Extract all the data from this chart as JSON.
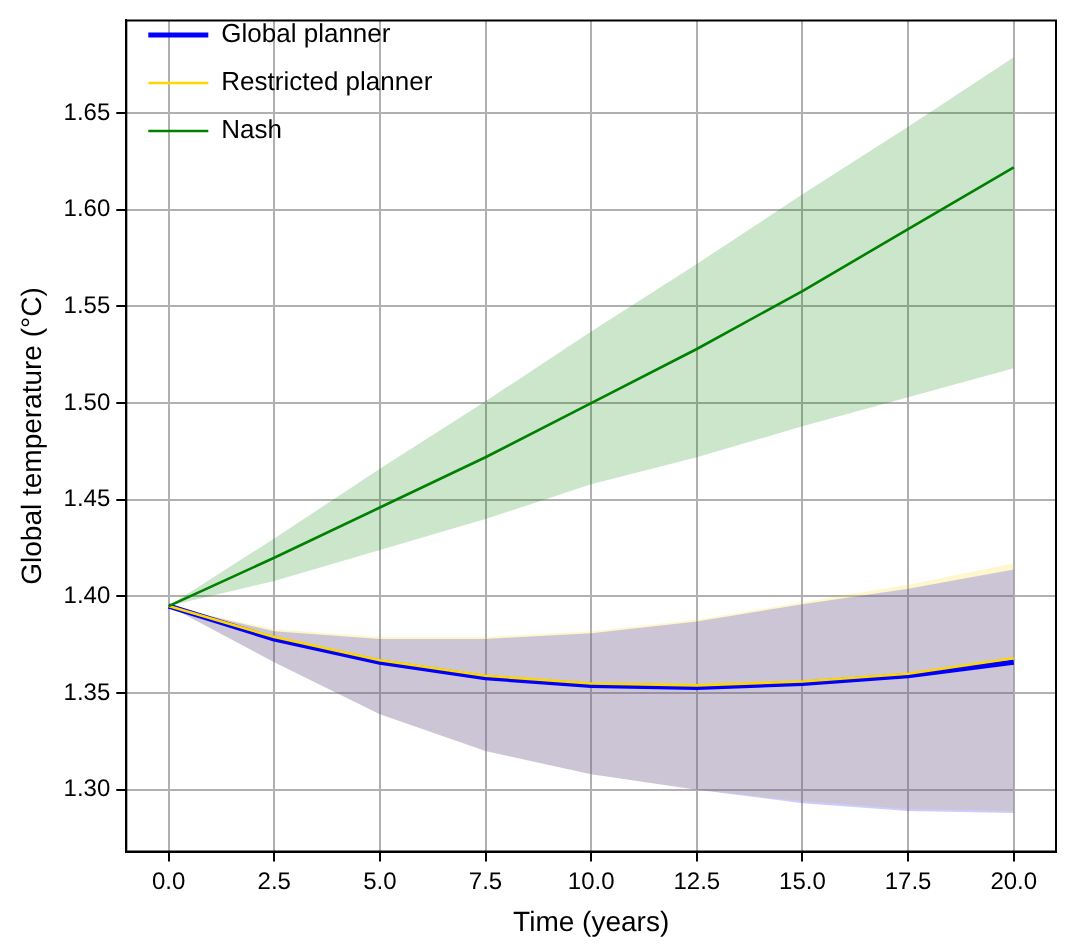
{
  "chart_data": {
    "type": "line",
    "xlabel": "Time (years)",
    "ylabel": "Global temperature (°C)",
    "x": [
      0,
      2.5,
      5,
      7.5,
      10,
      12.5,
      15,
      17.5,
      20
    ],
    "series": [
      {
        "name": "Global planner",
        "color": "#0000ff",
        "values": [
          1.395,
          1.378,
          1.366,
          1.358,
          1.354,
          1.353,
          1.355,
          1.359,
          1.366
        ],
        "lower": [
          1.395,
          1.366,
          1.339,
          1.32,
          1.308,
          1.3,
          1.293,
          1.289,
          1.288
        ],
        "upper": [
          1.395,
          1.382,
          1.378,
          1.378,
          1.381,
          1.387,
          1.396,
          1.404,
          1.414
        ]
      },
      {
        "name": "Restricted planner",
        "color": "#ffd700",
        "values": [
          1.395,
          1.379,
          1.367,
          1.359,
          1.355,
          1.354,
          1.356,
          1.36,
          1.368
        ],
        "lower": [
          1.395,
          1.366,
          1.339,
          1.32,
          1.308,
          1.3,
          1.294,
          1.29,
          1.289
        ],
        "upper": [
          1.395,
          1.383,
          1.379,
          1.379,
          1.382,
          1.388,
          1.397,
          1.406,
          1.417
        ]
      },
      {
        "name": "Nash",
        "color": "#008000",
        "values": [
          1.395,
          1.42,
          1.446,
          1.472,
          1.5,
          1.528,
          1.558,
          1.59,
          1.622
        ],
        "lower": [
          1.395,
          1.408,
          1.424,
          1.44,
          1.458,
          1.472,
          1.488,
          1.503,
          1.518
        ],
        "upper": [
          1.395,
          1.43,
          1.466,
          1.501,
          1.537,
          1.572,
          1.608,
          1.643,
          1.679
        ]
      }
    ],
    "xlim": [
      -1,
      21
    ],
    "ylim": [
      1.268,
      1.698
    ],
    "xticks": [
      {
        "value": 0,
        "label": "0.0"
      },
      {
        "value": 2.5,
        "label": "2.5"
      },
      {
        "value": 5,
        "label": "5.0"
      },
      {
        "value": 7.5,
        "label": "7.5"
      },
      {
        "value": 10,
        "label": "10.0"
      },
      {
        "value": 12.5,
        "label": "12.5"
      },
      {
        "value": 15,
        "label": "15.0"
      },
      {
        "value": 17.5,
        "label": "17.5"
      },
      {
        "value": 20,
        "label": "20.0"
      }
    ],
    "yticks": [
      {
        "value": 1.3,
        "label": "1.30"
      },
      {
        "value": 1.35,
        "label": "1.35"
      },
      {
        "value": 1.4,
        "label": "1.40"
      },
      {
        "value": 1.45,
        "label": "1.45"
      },
      {
        "value": 1.5,
        "label": "1.50"
      },
      {
        "value": 1.55,
        "label": "1.55"
      },
      {
        "value": 1.6,
        "label": "1.60"
      },
      {
        "value": 1.65,
        "label": "1.65"
      }
    ],
    "grid": true,
    "legend": "top left",
    "marker": "none",
    "line_style": "solid"
  }
}
